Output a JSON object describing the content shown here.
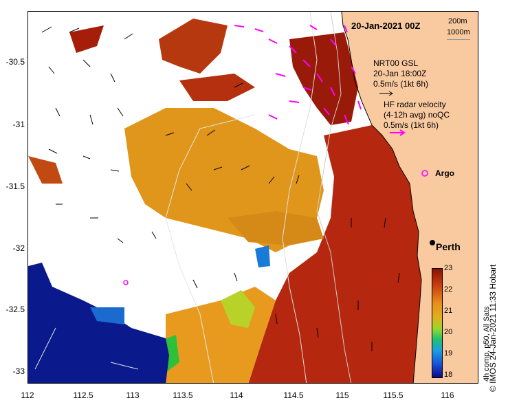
{
  "map": {
    "date_label": "20-Jan-2021 00Z",
    "isobath_labels": [
      "200m",
      "1000m"
    ],
    "gsl_title": "NRT00 GSL",
    "gsl_time": "20-Jan 18:00Z",
    "gsl_scale": "0.5m/s (1kt 6h)",
    "hf_title": "HF radar velocity",
    "hf_subtitle": "(4-12h avg) noQC",
    "hf_scale": "0.5m/s (1kt 6h)",
    "argo_label": "Argo",
    "city_label": "Perth",
    "credit": "© IMOS 24-Jan-2021 11:33 Hobart",
    "colorbar_label": "4h comp, p50, All Sats",
    "colorbar_ticks": [
      "23",
      "22",
      "21",
      "20",
      "19",
      "18"
    ],
    "y_ticks": [
      "-30.5",
      "-31",
      "-31.5",
      "-32",
      "-32.5",
      "-33"
    ],
    "x_ticks": [
      "112",
      "112.5",
      "113",
      "113.5",
      "114",
      "114.5",
      "115",
      "115.5",
      "116"
    ],
    "colors": {
      "land": "#f9c9a0",
      "sst_warm": "#b5280f",
      "sst_mid": "#e0961a",
      "sst_cool": "#0a1a8c",
      "hf_arrows": "#ff00ff",
      "gsl_arrows": "#000000"
    }
  }
}
